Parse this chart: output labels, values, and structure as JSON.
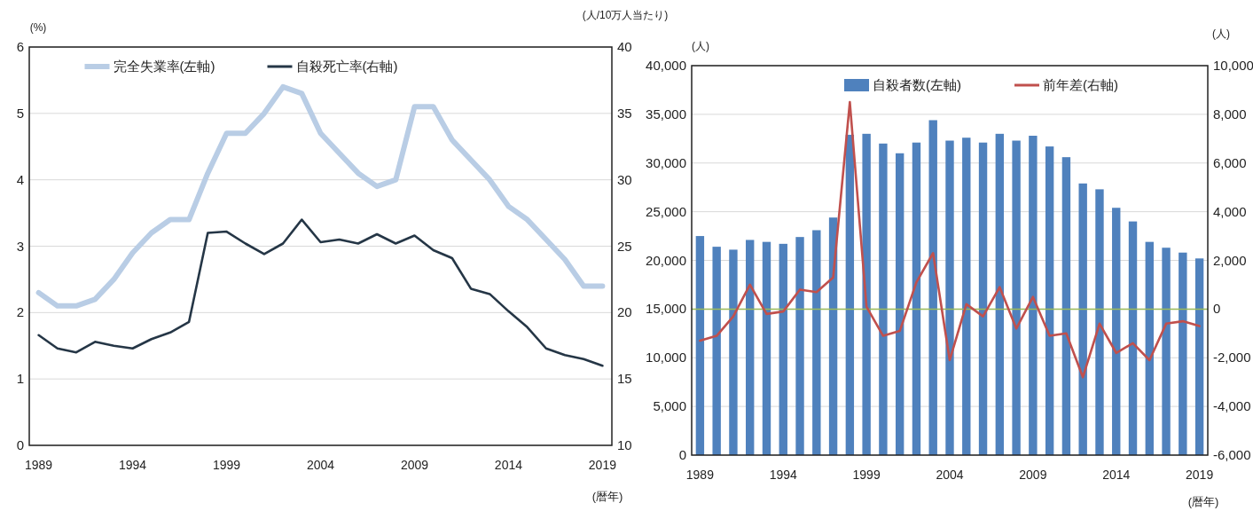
{
  "chart_data": [
    {
      "type": "line",
      "ylabel": "(%)",
      "y2label": "(人/10万人当たり)",
      "xlabel": "(暦年)",
      "categories": [
        "1989",
        null,
        null,
        null,
        null,
        "1994",
        null,
        null,
        null,
        null,
        "1999",
        null,
        null,
        null,
        null,
        "2004",
        null,
        null,
        null,
        null,
        "2009",
        null,
        null,
        null,
        null,
        "2014",
        null,
        null,
        null,
        null,
        "2019"
      ],
      "series": [
        {
          "name": "完全失業率(左軸)",
          "color": "#b9cde5",
          "values": [
            2.3,
            2.1,
            2.1,
            2.2,
            2.5,
            2.9,
            3.2,
            3.4,
            3.4,
            4.1,
            4.7,
            4.7,
            5.0,
            5.4,
            5.3,
            4.7,
            4.4,
            4.1,
            3.9,
            4.0,
            5.1,
            5.1,
            4.6,
            4.3,
            4.0,
            3.6,
            3.4,
            3.1,
            2.8,
            2.4,
            2.4
          ]
        },
        {
          "name": "自殺死亡率(右軸)",
          "color": "#253646",
          "axis": "y2",
          "values": [
            18.3,
            17.3,
            17.0,
            17.8,
            17.5,
            17.3,
            18.0,
            18.5,
            19.3,
            26.0,
            26.1,
            25.2,
            24.4,
            25.2,
            27.0,
            25.3,
            25.5,
            25.2,
            25.9,
            25.2,
            25.8,
            24.7,
            24.1,
            21.8,
            21.4,
            20.1,
            18.9,
            17.3,
            16.8,
            16.5,
            16.0
          ]
        }
      ],
      "ylim": [
        0,
        6
      ],
      "yticks": [
        0,
        1,
        2,
        3,
        4,
        5,
        6
      ],
      "y2lim": [
        10,
        40
      ],
      "y2ticks": [
        10,
        15,
        20,
        25,
        30,
        35,
        40
      ],
      "grid": "y",
      "legend": "top"
    },
    {
      "type": "bar",
      "ylabel": "(人)",
      "y2label": "(人)",
      "xlabel": "(暦年)",
      "categories": [
        "1989",
        null,
        null,
        null,
        null,
        "1994",
        null,
        null,
        null,
        null,
        "1999",
        null,
        null,
        null,
        null,
        "2004",
        null,
        null,
        null,
        null,
        "2009",
        null,
        null,
        null,
        null,
        "2014",
        null,
        null,
        null,
        null,
        "2019"
      ],
      "series": [
        {
          "name": "自殺者数(左軸)",
          "color": "#4f81bd",
          "values": [
            22500,
            21400,
            21100,
            22100,
            21900,
            21700,
            22400,
            23100,
            24400,
            32900,
            33000,
            32000,
            31000,
            32100,
            34400,
            32300,
            32600,
            32100,
            33000,
            32300,
            32800,
            31700,
            30600,
            27900,
            27300,
            25400,
            24000,
            21900,
            21300,
            20800,
            20200
          ]
        },
        {
          "name": "前年差(右軸)",
          "type": "line",
          "color": "#c0504d",
          "axis": "y2",
          "values": [
            -1300,
            -1100,
            -300,
            1000,
            -200,
            -100,
            800,
            700,
            1300,
            8500,
            100,
            -1100,
            -900,
            1100,
            2300,
            -2100,
            200,
            -300,
            900,
            -800,
            500,
            -1100,
            -1000,
            -2800,
            -600,
            -1800,
            -1400,
            -2100,
            -600,
            -500,
            -700
          ]
        }
      ],
      "ylim": [
        0,
        40000
      ],
      "yticks": [
        {
          "value": 0,
          "label": "0"
        },
        {
          "value": 5000,
          "label": "5,000"
        },
        {
          "value": 10000,
          "label": "10,000"
        },
        {
          "value": 15000,
          "label": "15,000"
        },
        {
          "value": 20000,
          "label": "20,000"
        },
        {
          "value": 25000,
          "label": "25,000"
        },
        {
          "value": 30000,
          "label": "30,000"
        },
        {
          "value": 35000,
          "label": "35,000"
        },
        {
          "value": 40000,
          "label": "40,000"
        }
      ],
      "y2lim": [
        -6000,
        10000
      ],
      "y2ticks": [
        {
          "value": -6000,
          "label": "-6,000"
        },
        {
          "value": -4000,
          "label": "-4,000"
        },
        {
          "value": -2000,
          "label": "-2,000"
        },
        {
          "value": 0,
          "label": "0"
        },
        {
          "value": 2000,
          "label": "2,000"
        },
        {
          "value": 4000,
          "label": "4,000"
        },
        {
          "value": 6000,
          "label": "6,000"
        },
        {
          "value": 8000,
          "label": "8,000"
        },
        {
          "value": 10000,
          "label": "10,000"
        }
      ],
      "ref_lines": [
        {
          "axis": "y2",
          "value": 0,
          "color": "#9bbb59"
        }
      ],
      "grid": "y",
      "legend": "top right"
    }
  ]
}
